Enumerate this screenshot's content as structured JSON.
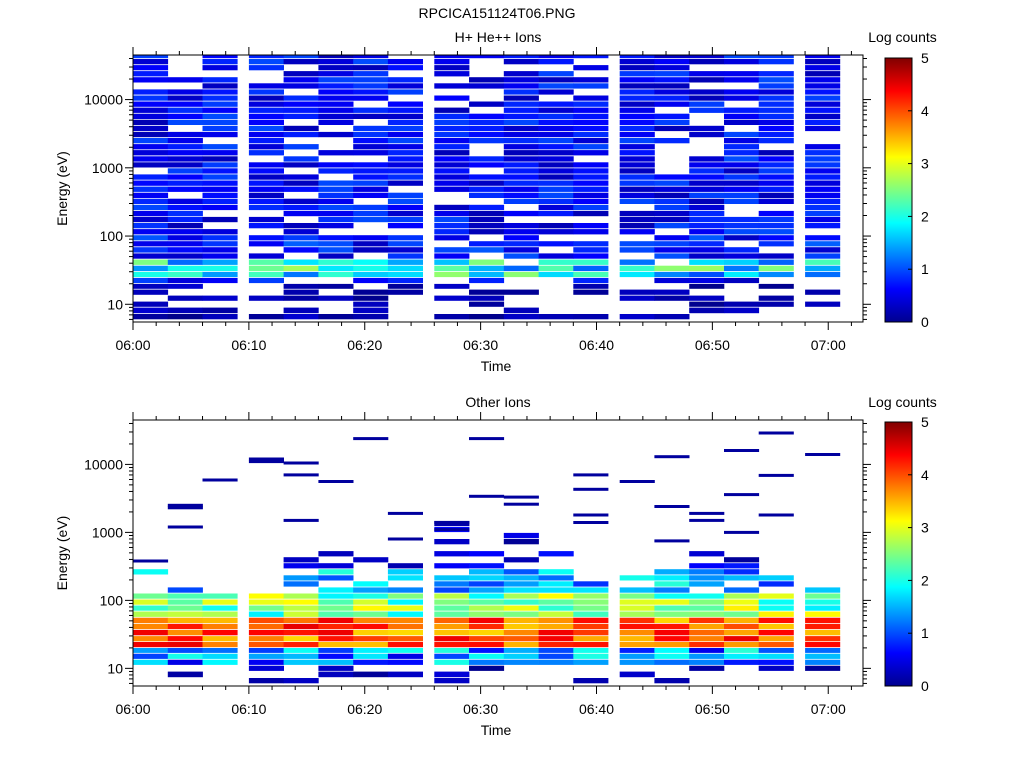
{
  "figure_title": "RPCICA151124T06.PNG",
  "chart_data": [
    {
      "type": "heatmap",
      "title": "H+ He++ Ions",
      "xlabel": "Time",
      "ylabel": "Energy (eV)",
      "yscale": "log",
      "ylim": [
        5.5,
        45000
      ],
      "xlim": [
        "06:00",
        "07:03"
      ],
      "x_ticks": [
        "06:00",
        "06:10",
        "06:20",
        "06:30",
        "06:40",
        "06:50",
        "07:00"
      ],
      "y_ticks": [
        "10",
        "100",
        "1000",
        "10000"
      ],
      "colorbar": {
        "label": "Log counts",
        "range": [
          0,
          5
        ],
        "ticks": [
          "0",
          "1",
          "2",
          "3",
          "4",
          "5"
        ],
        "colormap": "jet"
      },
      "time_bins": [
        "06:00",
        "06:03",
        "06:06",
        "06:10",
        "06:13",
        "06:16",
        "06:19",
        "06:22",
        "06:26",
        "06:29",
        "06:32",
        "06:35",
        "06:38",
        "06:42",
        "06:45",
        "06:48",
        "06:51",
        "06:54",
        "06:58"
      ],
      "energy_bins_eV": [
        6.5,
        8,
        10,
        12,
        15,
        18,
        22,
        27,
        33,
        41,
        50,
        62,
        76,
        93,
        114,
        140,
        172,
        211,
        259,
        318,
        390,
        479,
        588,
        722,
        886,
        1090,
        1330,
        1640,
        2010,
        2470,
        3030,
        3720,
        4570,
        5610,
        6890,
        8460,
        10400,
        12700,
        15600,
        19200,
        23600,
        28900,
        35500,
        43600
      ],
      "description": "Background fill with log counts ~0.3-1.0 across 100 eV - 40 keV with scattered empty bins; band ~1.6-2.6 near 25-45 eV; sparse low counts below 20 eV"
    },
    {
      "type": "heatmap",
      "title": "Other Ions",
      "xlabel": "Time",
      "ylabel": "Energy (eV)",
      "yscale": "log",
      "ylim": [
        5.5,
        45000
      ],
      "xlim": [
        "06:00",
        "07:03"
      ],
      "x_ticks": [
        "06:00",
        "06:10",
        "06:20",
        "06:30",
        "06:40",
        "06:50",
        "07:00"
      ],
      "y_ticks": [
        "10",
        "100",
        "1000",
        "10000"
      ],
      "colorbar": {
        "label": "Log counts",
        "range": [
          0,
          5
        ],
        "ticks": [
          "0",
          "1",
          "2",
          "3",
          "4",
          "5"
        ],
        "colormap": "jet"
      },
      "time_bins": [
        "06:00",
        "06:03",
        "06:06",
        "06:10",
        "06:13",
        "06:16",
        "06:19",
        "06:22",
        "06:26",
        "06:29",
        "06:32",
        "06:35",
        "06:38",
        "06:42",
        "06:45",
        "06:48",
        "06:51",
        "06:54",
        "06:58"
      ],
      "energy_bins_eV": [
        6.5,
        8,
        10,
        12,
        15,
        18,
        22,
        27,
        33,
        41,
        50,
        62,
        76,
        93,
        114,
        140,
        172,
        211,
        259,
        318,
        390,
        479,
        588,
        722,
        886,
        1090,
        1330,
        1640,
        2010,
        2470,
        3030,
        3720,
        4570,
        5610,
        6890,
        8460,
        10400,
        12700,
        15600,
        19200,
        23600,
        28900,
        35500,
        43600
      ],
      "peak_band_eV": [
        25,
        50
      ],
      "peak_log_counts": 4.4,
      "top_energy_per_bin_eV": [
        350,
        190,
        140,
        400,
        440,
        480,
        580,
        340,
        1400,
        500,
        900,
        500,
        200,
        240,
        260,
        550,
        500,
        230,
        160
      ],
      "sparse_high_energy_lines": [
        [
          0,
          380
        ],
        [
          1,
          2300
        ],
        [
          1,
          2500
        ],
        [
          1,
          1200
        ],
        [
          2,
          5900
        ],
        [
          3,
          12000
        ],
        [
          3,
          11000
        ],
        [
          4,
          10500
        ],
        [
          4,
          7000
        ],
        [
          4,
          1500
        ],
        [
          5,
          5600
        ],
        [
          6,
          24000
        ],
        [
          7,
          1900
        ],
        [
          7,
          800
        ],
        [
          8,
          1400
        ],
        [
          8,
          1100
        ],
        [
          9,
          24000
        ],
        [
          9,
          3400
        ],
        [
          10,
          3300
        ],
        [
          10,
          2600
        ],
        [
          12,
          7000
        ],
        [
          12,
          4300
        ],
        [
          12,
          1800
        ],
        [
          12,
          1400
        ],
        [
          13,
          5600
        ],
        [
          14,
          13000
        ],
        [
          14,
          2400
        ],
        [
          14,
          750
        ],
        [
          15,
          1900
        ],
        [
          15,
          1500
        ],
        [
          16,
          16000
        ],
        [
          16,
          3600
        ],
        [
          16,
          1000
        ],
        [
          17,
          29000
        ],
        [
          17,
          6900
        ],
        [
          17,
          1800
        ],
        [
          18,
          14000
        ]
      ]
    }
  ]
}
